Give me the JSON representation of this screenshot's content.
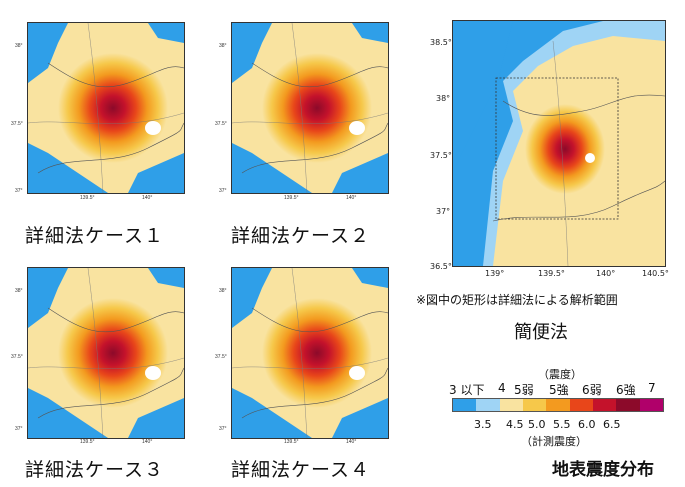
{
  "small_maps": [
    {
      "caption": "詳細法ケース１",
      "lat_ticks": [
        "38°",
        "37.5°",
        "37°"
      ],
      "lon_ticks": [
        "139.5°",
        "140°"
      ]
    },
    {
      "caption": "詳細法ケース２",
      "lat_ticks": [
        "38°",
        "37.5°",
        "37°"
      ],
      "lon_ticks": [
        "139.5°",
        "140°"
      ]
    },
    {
      "caption": "詳細法ケース３",
      "lat_ticks": [
        "38°",
        "37.5°",
        "37°"
      ],
      "lon_ticks": [
        "139.5°",
        "140°"
      ]
    },
    {
      "caption": "詳細法ケース４",
      "lat_ticks": [
        "38°",
        "37.5°",
        "37°"
      ],
      "lon_ticks": [
        "139.5°",
        "140°"
      ]
    }
  ],
  "main_map": {
    "lat_ticks": [
      "38.5°",
      "38°",
      "37.5°",
      "37°",
      "36.5°"
    ],
    "lon_ticks": [
      "139°",
      "139.5°",
      "140°",
      "140.5°"
    ],
    "note": "※図中の矩形は詳細法による解析範囲",
    "caption": "簡便法"
  },
  "legend": {
    "title_top": "（震度）",
    "levels": [
      "3 以下",
      "4",
      "5弱",
      "5強",
      "6弱",
      "6強",
      "7"
    ],
    "numbers": [
      "3.5",
      "4.5",
      "5.0",
      "5.5",
      "6.0",
      "6.5"
    ],
    "title_bottom": "（計測震度）",
    "colors": [
      "#2f9fe8",
      "#9fd4f5",
      "#f9e3a0",
      "#f6c84a",
      "#f39a1f",
      "#e8461a",
      "#c4122b",
      "#8c0a2a",
      "#b0006a"
    ]
  },
  "title": "地表震度分布"
}
